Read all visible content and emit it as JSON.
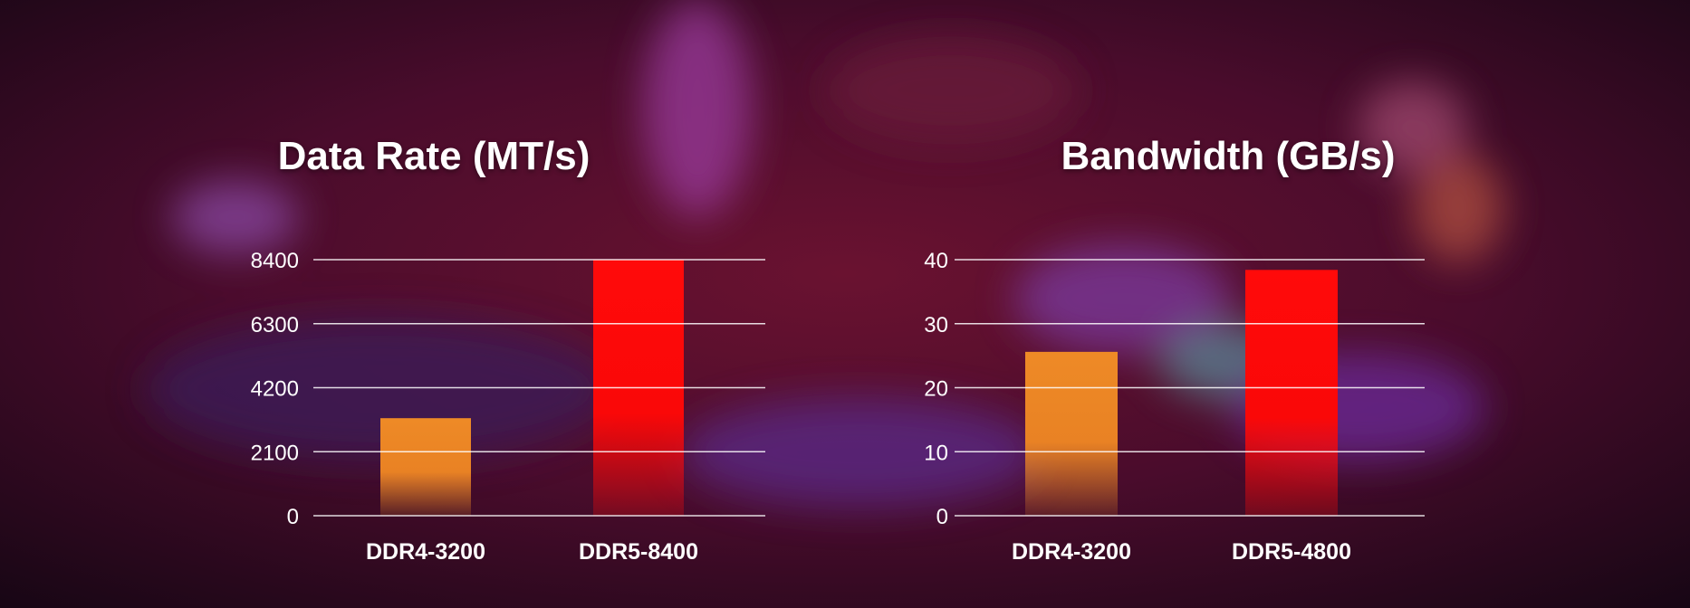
{
  "colors": {
    "ddr4": "#ee8a26",
    "ddr5": "#ff0a0a",
    "gridline": "#ffffff",
    "text": "#ffffff"
  },
  "chart_data": [
    {
      "type": "bar",
      "title": "Data Rate (MT/s)",
      "categories": [
        "DDR4-3200",
        "DDR5-8400"
      ],
      "values": [
        3200,
        8400
      ],
      "yticks": [
        "0",
        "2100",
        "4200",
        "6300",
        "8400"
      ],
      "ylim": [
        0,
        8400
      ],
      "grid": true,
      "xlabel": "",
      "ylabel": ""
    },
    {
      "type": "bar",
      "title": "Bandwidth (GB/s)",
      "categories": [
        "DDR4-3200",
        "DDR5-4800"
      ],
      "values": [
        25.6,
        38.4
      ],
      "yticks": [
        "0",
        "10",
        "20",
        "30",
        "40"
      ],
      "ylim": [
        0,
        40
      ],
      "grid": true,
      "xlabel": "",
      "ylabel": ""
    }
  ]
}
